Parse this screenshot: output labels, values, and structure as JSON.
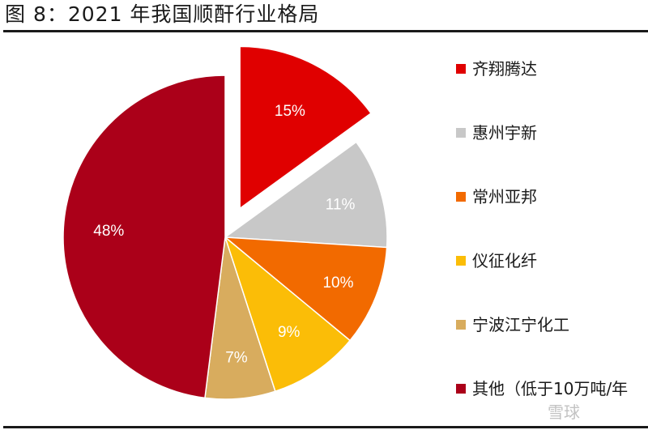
{
  "figure": {
    "title": "图 8：2021 年我国顺酐行业格局"
  },
  "chart_data": {
    "type": "pie",
    "title": "2021 年我国顺酐行业格局",
    "start_angle": "12 o'clock",
    "direction": "clockwise",
    "exploded_slice": "齐翔腾达",
    "categories": [
      "齐翔腾达",
      "惠州宇新",
      "常州亚邦",
      "仪征化纤",
      "宁波江宁化工",
      "其他（低于10万吨/年"
    ],
    "values": [
      15,
      11,
      10,
      9,
      7,
      48
    ],
    "labels": [
      "15%",
      "11%",
      "10%",
      "9%",
      "7%",
      "48%"
    ],
    "colors": [
      "#e00000",
      "#c8c8c8",
      "#f26a00",
      "#fbbd07",
      "#d8ac5e",
      "#ab0019"
    ],
    "legend_position": "right"
  },
  "legend": {
    "items": [
      {
        "label": "齐翔腾达",
        "color": "#e00000"
      },
      {
        "label": "惠州宇新",
        "color": "#c8c8c8"
      },
      {
        "label": "常州亚邦",
        "color": "#f26a00"
      },
      {
        "label": "仪征化纤",
        "color": "#fbbd07"
      },
      {
        "label": "宁波江宁化工",
        "color": "#d8ac5e"
      },
      {
        "label": "其他（低于10万吨/年",
        "color": "#ab0019"
      }
    ]
  },
  "watermark": "雪球"
}
